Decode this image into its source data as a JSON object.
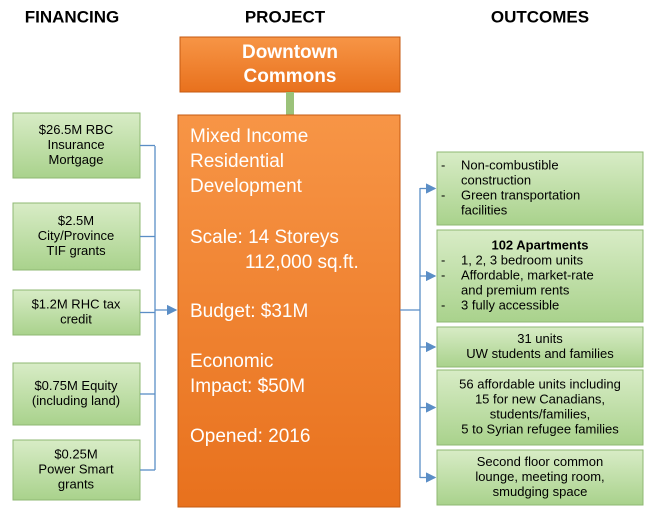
{
  "headers": {
    "financing": "FINANCING",
    "project": "PROJECT",
    "outcomes": "OUTCOMES"
  },
  "bullet_marker": "-",
  "financing": [
    {
      "lines": [
        "$26.5M RBC",
        "Insurance",
        "Mortgage"
      ]
    },
    {
      "lines": [
        "$2.5M",
        "City/Province",
        "TIF grants"
      ]
    },
    {
      "lines": [
        "$1.2M RHC tax",
        "credit"
      ]
    },
    {
      "lines": [
        "$0.75M Equity",
        "(including land)"
      ]
    },
    {
      "lines": [
        "$0.25M",
        "Power Smart",
        "grants"
      ]
    }
  ],
  "project": {
    "title": [
      "Downtown",
      "Commons"
    ],
    "details": [
      "Mixed Income",
      "Residential",
      "Development",
      "Scale:  14 Storeys",
      "112,000 sq.ft.",
      "Budget: $31M",
      "Economic",
      "Impact:  $50M",
      "Opened:  2016"
    ]
  },
  "outcomes": [
    {
      "items": [
        [
          "Non-combustible",
          "construction"
        ],
        [
          "Green transportation",
          "facilities"
        ]
      ]
    },
    {
      "title": "102 Apartments",
      "items": [
        [
          "1, 2, 3 bedroom units"
        ],
        [
          "Affordable, market-rate",
          "and premium rents"
        ],
        [
          "3 fully accessible"
        ]
      ]
    },
    {
      "lines": [
        "31 units",
        "UW students and families"
      ]
    },
    {
      "lines": [
        "56 affordable units including",
        "15 for new Canadians,",
        "students/families,",
        "5 to Syrian refugee families"
      ]
    },
    {
      "lines": [
        "Second floor common",
        "lounge, meeting room,",
        "smudging space"
      ]
    }
  ]
}
